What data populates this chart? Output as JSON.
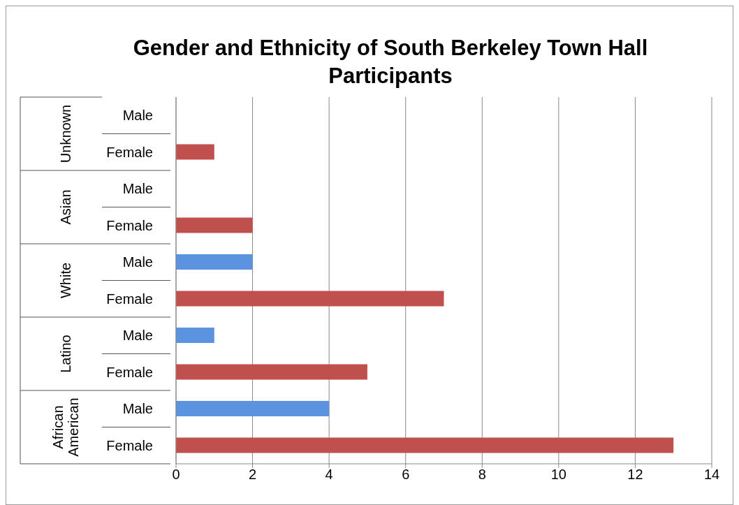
{
  "chart_data": {
    "type": "bar",
    "orientation": "horizontal",
    "title": "Gender and Ethnicity of South Berkeley Town Hall Participants",
    "categories": [
      "Male",
      "Female",
      "Male",
      "Female",
      "Male",
      "Female",
      "Male",
      "Female",
      "Male",
      "Female"
    ],
    "values": [
      0,
      1,
      0,
      2,
      2,
      7,
      1,
      5,
      4,
      13
    ],
    "colors": [
      "#5b93e0",
      "#c0504d",
      "#5b93e0",
      "#c0504d",
      "#5b93e0",
      "#c0504d",
      "#5b93e0",
      "#c0504d",
      "#5b93e0",
      "#c0504d"
    ],
    "annotations": [
      "Unknown",
      "Asian",
      "White",
      "Latino",
      "African American"
    ],
    "xlim": [
      0,
      14
    ],
    "xticks": [
      0,
      2,
      4,
      6,
      8,
      10,
      12,
      14
    ],
    "grid": "x"
  }
}
